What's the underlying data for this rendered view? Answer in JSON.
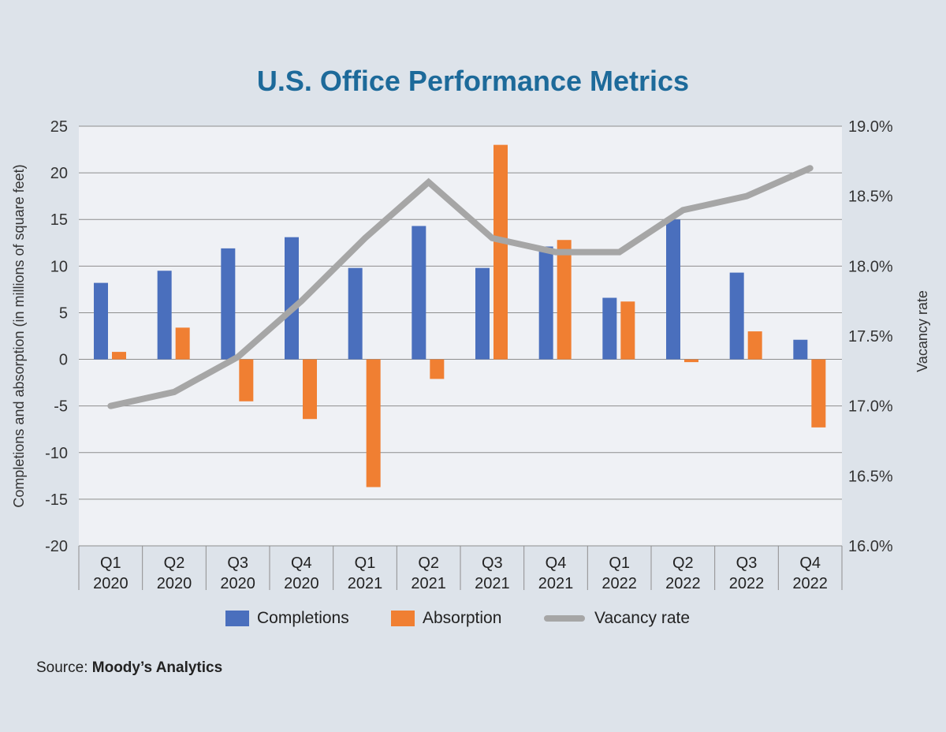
{
  "title": "U.S. Office Performance Metrics",
  "source": {
    "label": "Source:",
    "name": "Moody’s Analytics"
  },
  "colors": {
    "completions": "#4a6fbd",
    "absorption": "#f07f32",
    "vacancy": "#a6a6a6"
  },
  "chart_data": {
    "type": "bar",
    "title": "U.S. Office Performance Metrics",
    "categories": [
      [
        "Q1",
        "2020"
      ],
      [
        "Q2",
        "2020"
      ],
      [
        "Q3",
        "2020"
      ],
      [
        "Q4",
        "2020"
      ],
      [
        "Q1",
        "2021"
      ],
      [
        "Q2",
        "2021"
      ],
      [
        "Q3",
        "2021"
      ],
      [
        "Q4",
        "2021"
      ],
      [
        "Q1",
        "2022"
      ],
      [
        "Q2",
        "2022"
      ],
      [
        "Q3",
        "2022"
      ],
      [
        "Q4",
        "2022"
      ]
    ],
    "series": [
      {
        "name": "Completions",
        "kind": "bar",
        "axis": "left",
        "values": [
          8.2,
          9.5,
          11.9,
          13.1,
          9.8,
          14.3,
          9.8,
          12.1,
          6.6,
          15.0,
          9.3,
          2.1
        ]
      },
      {
        "name": "Absorption",
        "kind": "bar",
        "axis": "left",
        "values": [
          0.8,
          3.4,
          -4.5,
          -6.4,
          -13.7,
          -2.1,
          23.0,
          12.8,
          6.2,
          -0.3,
          3.0,
          -7.3
        ]
      },
      {
        "name": "Vacancy rate",
        "kind": "line",
        "axis": "right",
        "values": [
          17.0,
          17.1,
          17.35,
          17.75,
          18.2,
          18.6,
          18.2,
          18.1,
          18.1,
          18.4,
          18.5,
          18.7
        ]
      }
    ],
    "ylabel": "Completions and absorption (in millions of square feet)",
    "y2label": "Vacancy rate",
    "ylim": [
      -20,
      25
    ],
    "yticks": [
      "25",
      "20",
      "15",
      "10",
      "5",
      "0",
      "-5",
      "-10",
      "-15",
      "-20"
    ],
    "y2lim": [
      16.0,
      19.0
    ],
    "y2ticks": [
      "19.0%",
      "18.5%",
      "18.0%",
      "17.5%",
      "17.0%",
      "16.5%",
      "16.0%"
    ],
    "grid": true,
    "legend_position": "bottom"
  }
}
